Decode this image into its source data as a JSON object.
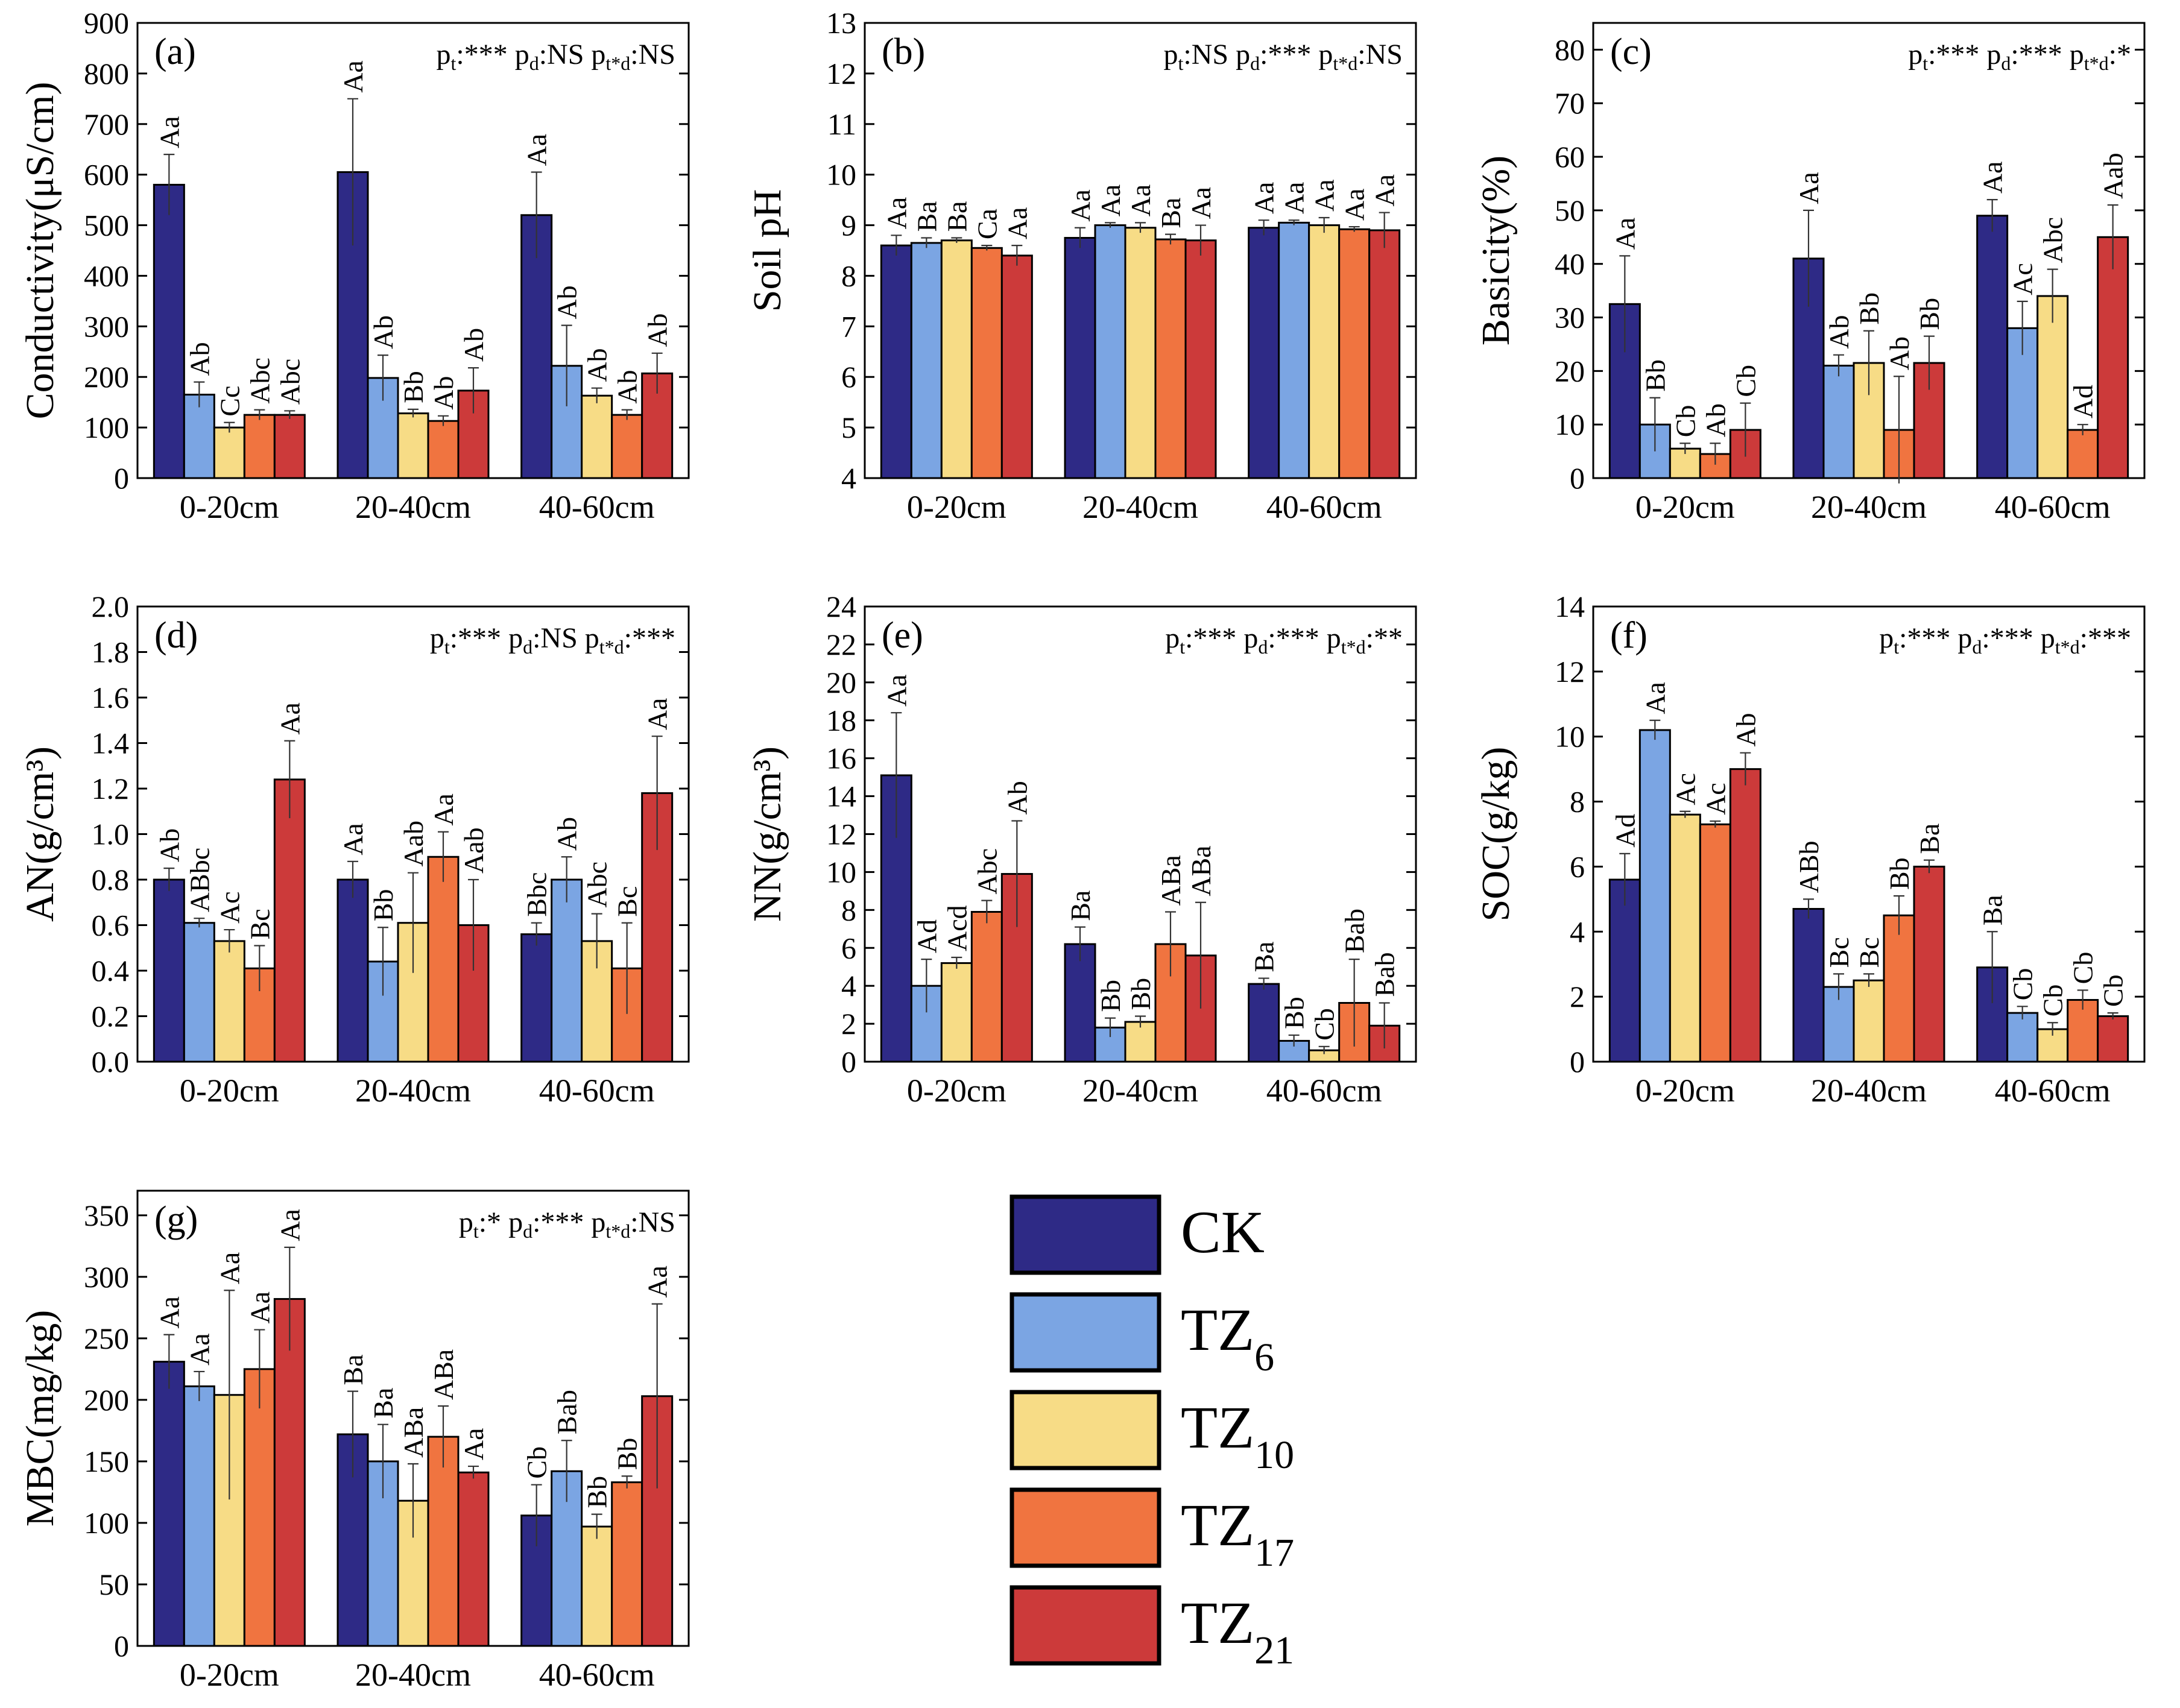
{
  "figure": {
    "groups": [
      "0-20cm",
      "20-40cm",
      "40-60cm"
    ],
    "treatments": [
      "CK",
      "TZ6",
      "TZ10",
      "TZ17",
      "TZ21"
    ],
    "colors": {
      "CK": "#2e2a86",
      "TZ6": "#7ba5e3",
      "TZ10": "#f7dc86",
      "TZ17": "#f07440",
      "TZ21": "#cc3a3a"
    }
  },
  "legend": {
    "items": [
      {
        "key": "CK",
        "base": "CK",
        "sub": ""
      },
      {
        "key": "TZ6",
        "base": "TZ",
        "sub": "6"
      },
      {
        "key": "TZ10",
        "base": "TZ",
        "sub": "10"
      },
      {
        "key": "TZ17",
        "base": "TZ",
        "sub": "17"
      },
      {
        "key": "TZ21",
        "base": "TZ",
        "sub": "21"
      }
    ]
  },
  "chart_data": [
    {
      "id": "a",
      "type": "bar",
      "panel_label": "(a)",
      "ylabel": "Conductivity(μS/cm)",
      "ylim": [
        0,
        900
      ],
      "yticks": [
        "0",
        "100",
        "200",
        "300",
        "400",
        "500",
        "600",
        "700",
        "800",
        "900"
      ],
      "pvalues": [
        {
          "p": "p",
          "sub": "t",
          "val": ":*** "
        },
        {
          "p": "p",
          "sub": "d",
          "val": ":NS "
        },
        {
          "p": "p",
          "sub": "t*d",
          "val": ":NS"
        }
      ],
      "categories": [
        "0-20cm",
        "20-40cm",
        "40-60cm"
      ],
      "series": [
        {
          "name": "CK",
          "values": [
            580,
            605,
            520
          ],
          "errors": [
            60,
            145,
            85
          ],
          "labels": [
            "Aa",
            "Aa",
            "Aa"
          ]
        },
        {
          "name": "TZ6",
          "values": [
            165,
            198,
            222
          ],
          "errors": [
            25,
            45,
            80
          ],
          "labels": [
            "Ab",
            "Ab",
            "Ab"
          ]
        },
        {
          "name": "TZ10",
          "values": [
            100,
            128,
            163
          ],
          "errors": [
            10,
            8,
            15
          ],
          "labels": [
            "Cc",
            "Bb",
            "Ab"
          ]
        },
        {
          "name": "TZ17",
          "values": [
            125,
            113,
            125
          ],
          "errors": [
            10,
            10,
            10
          ],
          "labels": [
            "Abc",
            "Ab",
            "Ab"
          ]
        },
        {
          "name": "TZ21",
          "values": [
            125,
            173,
            207
          ],
          "errors": [
            8,
            45,
            40
          ],
          "labels": [
            "Abc",
            "Ab",
            "Ab"
          ]
        }
      ]
    },
    {
      "id": "b",
      "type": "bar",
      "panel_label": "(b)",
      "ylabel": "Soil pH",
      "ylim": [
        4,
        13
      ],
      "yticks": [
        "4",
        "5",
        "6",
        "7",
        "8",
        "9",
        "10",
        "11",
        "12",
        "13"
      ],
      "pvalues": [
        {
          "p": "p",
          "sub": "t",
          "val": ":NS "
        },
        {
          "p": "p",
          "sub": "d",
          "val": ":*** "
        },
        {
          "p": "p",
          "sub": "t*d",
          "val": ":NS"
        }
      ],
      "categories": [
        "0-20cm",
        "20-40cm",
        "40-60cm"
      ],
      "series": [
        {
          "name": "CK",
          "values": [
            8.6,
            8.75,
            8.95
          ],
          "errors": [
            0.2,
            0.2,
            0.15
          ],
          "labels": [
            "Aa",
            "Aa",
            "Aa"
          ]
        },
        {
          "name": "TZ6",
          "values": [
            8.65,
            9.0,
            9.05
          ],
          "errors": [
            0.1,
            0.05,
            0.05
          ],
          "labels": [
            "Ba",
            "Aa",
            "Aa"
          ]
        },
        {
          "name": "TZ10",
          "values": [
            8.7,
            8.95,
            9.0
          ],
          "errors": [
            0.05,
            0.1,
            0.15
          ],
          "labels": [
            "Ba",
            "Aa",
            "Aa"
          ]
        },
        {
          "name": "TZ17",
          "values": [
            8.55,
            8.72,
            8.92
          ],
          "errors": [
            0.05,
            0.1,
            0.05
          ],
          "labels": [
            "Ca",
            "Ba",
            "Aa"
          ]
        },
        {
          "name": "TZ21",
          "values": [
            8.4,
            8.7,
            8.9
          ],
          "errors": [
            0.2,
            0.3,
            0.35
          ],
          "labels": [
            "Aa",
            "Aa",
            "Aa"
          ]
        }
      ]
    },
    {
      "id": "c",
      "type": "bar",
      "panel_label": "(c)",
      "ylabel": "Basicity(%)",
      "ylim": [
        0,
        85
      ],
      "yticks": [
        "0",
        "10",
        "20",
        "30",
        "40",
        "50",
        "60",
        "70",
        "80"
      ],
      "pvalues": [
        {
          "p": "p",
          "sub": "t",
          "val": ":*** "
        },
        {
          "p": "p",
          "sub": "d",
          "val": ":*** "
        },
        {
          "p": "p",
          "sub": "t*d",
          "val": ":*"
        }
      ],
      "categories": [
        "0-20cm",
        "20-40cm",
        "40-60cm"
      ],
      "series": [
        {
          "name": "CK",
          "values": [
            32.5,
            41,
            49
          ],
          "errors": [
            9,
            9,
            3
          ],
          "labels": [
            "Aa",
            "Aa",
            "Aa"
          ]
        },
        {
          "name": "TZ6",
          "values": [
            10,
            21,
            28
          ],
          "errors": [
            5,
            2,
            5
          ],
          "labels": [
            "Bb",
            "Ab",
            "Ac"
          ]
        },
        {
          "name": "TZ10",
          "values": [
            5.5,
            21.5,
            34
          ],
          "errors": [
            1,
            6,
            5
          ],
          "labels": [
            "Cb",
            "Bb",
            "Abc"
          ]
        },
        {
          "name": "TZ17",
          "values": [
            4.5,
            9,
            9
          ],
          "errors": [
            2,
            10,
            1
          ],
          "labels": [
            "Ab",
            "Ab",
            "Ad"
          ]
        },
        {
          "name": "TZ21",
          "values": [
            9,
            21.5,
            45
          ],
          "errors": [
            5,
            5,
            6
          ],
          "labels": [
            "Cb",
            "Bb",
            "Aab"
          ]
        }
      ]
    },
    {
      "id": "d",
      "type": "bar",
      "panel_label": "(d)",
      "ylabel": "AN(g/cm³)",
      "ylim": [
        0,
        2.0
      ],
      "yticks": [
        "0.0",
        "0.2",
        "0.4",
        "0.6",
        "0.8",
        "1.0",
        "1.2",
        "1.4",
        "1.6",
        "1.8",
        "2.0"
      ],
      "pvalues": [
        {
          "p": "p",
          "sub": "t",
          "val": ":*** "
        },
        {
          "p": "p",
          "sub": "d",
          "val": ":NS "
        },
        {
          "p": "p",
          "sub": "t*d",
          "val": ":***"
        }
      ],
      "categories": [
        "0-20cm",
        "20-40cm",
        "40-60cm"
      ],
      "series": [
        {
          "name": "CK",
          "values": [
            0.8,
            0.8,
            0.56
          ],
          "errors": [
            0.05,
            0.08,
            0.05
          ],
          "labels": [
            "Ab",
            "Aa",
            "Bbc"
          ]
        },
        {
          "name": "TZ6",
          "values": [
            0.61,
            0.44,
            0.8
          ],
          "errors": [
            0.02,
            0.15,
            0.1
          ],
          "labels": [
            "ABbc",
            "Bb",
            "Ab"
          ]
        },
        {
          "name": "TZ10",
          "values": [
            0.53,
            0.61,
            0.53
          ],
          "errors": [
            0.05,
            0.22,
            0.12
          ],
          "labels": [
            "Ac",
            "Aab",
            "Abc"
          ]
        },
        {
          "name": "TZ17",
          "values": [
            0.41,
            0.9,
            0.41
          ],
          "errors": [
            0.1,
            0.11,
            0.2
          ],
          "labels": [
            "Bc",
            "Aa",
            "Bc"
          ]
        },
        {
          "name": "TZ21",
          "values": [
            1.24,
            0.6,
            1.18
          ],
          "errors": [
            0.17,
            0.2,
            0.25
          ],
          "labels": [
            "Aa",
            "Aab",
            "Aa"
          ]
        }
      ]
    },
    {
      "id": "e",
      "type": "bar",
      "panel_label": "(e)",
      "ylabel": "NN(g/cm³)",
      "ylim": [
        0,
        24
      ],
      "yticks": [
        "0",
        "2",
        "4",
        "6",
        "8",
        "10",
        "12",
        "14",
        "16",
        "18",
        "20",
        "22",
        "24"
      ],
      "pvalues": [
        {
          "p": "p",
          "sub": "t",
          "val": ":*** "
        },
        {
          "p": "p",
          "sub": "d",
          "val": ":*** "
        },
        {
          "p": "p",
          "sub": "t*d",
          "val": ":**"
        }
      ],
      "categories": [
        "0-20cm",
        "20-40cm",
        "40-60cm"
      ],
      "series": [
        {
          "name": "CK",
          "values": [
            15.1,
            6.2,
            4.1
          ],
          "errors": [
            3.3,
            0.9,
            0.3
          ],
          "labels": [
            "Aa",
            "Ba",
            "Ba"
          ]
        },
        {
          "name": "TZ6",
          "values": [
            4.0,
            1.8,
            1.1
          ],
          "errors": [
            1.4,
            0.5,
            0.3
          ],
          "labels": [
            "Ad",
            "Bb",
            "Bb"
          ]
        },
        {
          "name": "TZ10",
          "values": [
            5.2,
            2.1,
            0.6
          ],
          "errors": [
            0.3,
            0.3,
            0.2
          ],
          "labels": [
            "Acd",
            "Bb",
            "Cb"
          ]
        },
        {
          "name": "TZ17",
          "values": [
            7.9,
            6.2,
            3.1
          ],
          "errors": [
            0.6,
            1.7,
            2.3
          ],
          "labels": [
            "Abc",
            "ABa",
            "Bab"
          ]
        },
        {
          "name": "TZ21",
          "values": [
            9.9,
            5.6,
            1.9
          ],
          "errors": [
            2.8,
            2.8,
            1.2
          ],
          "labels": [
            "Ab",
            "ABa",
            "Bab"
          ]
        }
      ]
    },
    {
      "id": "f",
      "type": "bar",
      "panel_label": "(f)",
      "ylabel": "SOC(g/kg)",
      "ylim": [
        0,
        14
      ],
      "yticks": [
        "0",
        "2",
        "4",
        "6",
        "8",
        "10",
        "12",
        "14"
      ],
      "pvalues": [
        {
          "p": "p",
          "sub": "t",
          "val": ":*** "
        },
        {
          "p": "p",
          "sub": "d",
          "val": ":*** "
        },
        {
          "p": "p",
          "sub": "t*d",
          "val": ":***"
        }
      ],
      "categories": [
        "0-20cm",
        "20-40cm",
        "40-60cm"
      ],
      "series": [
        {
          "name": "CK",
          "values": [
            5.6,
            4.7,
            2.9
          ],
          "errors": [
            0.8,
            0.3,
            1.1
          ],
          "labels": [
            "Ad",
            "ABb",
            "Ba"
          ]
        },
        {
          "name": "TZ6",
          "values": [
            10.2,
            2.3,
            1.5
          ],
          "errors": [
            0.3,
            0.4,
            0.2
          ],
          "labels": [
            "Aa",
            "Bc",
            "Cb"
          ]
        },
        {
          "name": "TZ10",
          "values": [
            7.6,
            2.5,
            1.0
          ],
          "errors": [
            0.1,
            0.2,
            0.2
          ],
          "labels": [
            "Ac",
            "Bc",
            "Cb"
          ]
        },
        {
          "name": "TZ17",
          "values": [
            7.3,
            4.5,
            1.9
          ],
          "errors": [
            0.1,
            0.6,
            0.3
          ],
          "labels": [
            "Ac",
            "Bb",
            "Cb"
          ]
        },
        {
          "name": "TZ21",
          "values": [
            9.0,
            6.0,
            1.4
          ],
          "errors": [
            0.5,
            0.2,
            0.1
          ],
          "labels": [
            "Ab",
            "Ba",
            "Cb"
          ]
        }
      ]
    },
    {
      "id": "g",
      "type": "bar",
      "panel_label": "(g)",
      "ylabel": "MBC(mg/kg)",
      "ylim": [
        0,
        370
      ],
      "yticks": [
        "0",
        "50",
        "100",
        "150",
        "200",
        "250",
        "300",
        "350"
      ],
      "pvalues": [
        {
          "p": "p",
          "sub": "t",
          "val": ":* "
        },
        {
          "p": "p",
          "sub": "d",
          "val": ":*** "
        },
        {
          "p": "p",
          "sub": "t*d",
          "val": ":NS"
        }
      ],
      "categories": [
        "0-20cm",
        "20-40cm",
        "40-60cm"
      ],
      "series": [
        {
          "name": "CK",
          "values": [
            231,
            172,
            106
          ],
          "errors": [
            22,
            35,
            25
          ],
          "labels": [
            "Aa",
            "Ba",
            "Cb"
          ]
        },
        {
          "name": "TZ6",
          "values": [
            211,
            150,
            142
          ],
          "errors": [
            12,
            30,
            25
          ],
          "labels": [
            "Aa",
            "Ba",
            "Bab"
          ]
        },
        {
          "name": "TZ10",
          "values": [
            204,
            118,
            97
          ],
          "errors": [
            85,
            30,
            10
          ],
          "labels": [
            "Aa",
            "ABa",
            "Bb"
          ]
        },
        {
          "name": "TZ17",
          "values": [
            225,
            170,
            133
          ],
          "errors": [
            32,
            25,
            5
          ],
          "labels": [
            "Aa",
            "ABa",
            "Bb"
          ]
        },
        {
          "name": "TZ21",
          "values": [
            282,
            141,
            203
          ],
          "errors": [
            42,
            5,
            75
          ],
          "labels": [
            "Aa",
            "Aa",
            "Aa"
          ]
        }
      ]
    }
  ]
}
